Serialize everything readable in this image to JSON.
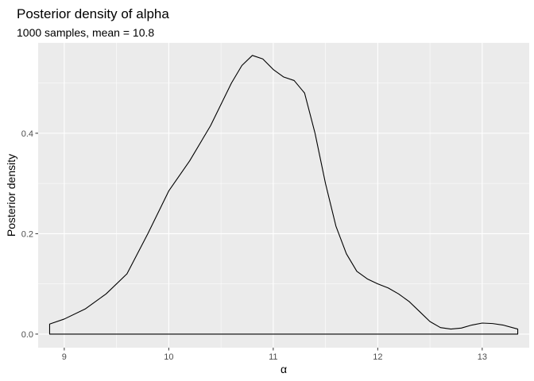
{
  "chart_data": {
    "type": "area",
    "title": "Posterior density of alpha",
    "subtitle": "1000 samples, mean = 10.8",
    "xlabel": "α",
    "ylabel": "Posterior density",
    "xlim": [
      8.75,
      13.45
    ],
    "ylim": [
      -0.027,
      0.58
    ],
    "x_ticks": [
      9,
      10,
      11,
      12,
      13
    ],
    "x_tick_labels": [
      "9",
      "10",
      "11",
      "12",
      "13"
    ],
    "y_ticks": [
      0.0,
      0.2,
      0.4
    ],
    "y_tick_labels": [
      "0.0",
      "0.2",
      "0.4"
    ],
    "grid": true,
    "colors": {
      "panel": "#ebebeb",
      "grid": "#ffffff",
      "line": "#000000",
      "fill": "none"
    },
    "series": [
      {
        "x": [
          8.86,
          9.0,
          9.2,
          9.4,
          9.6,
          9.8,
          10.0,
          10.2,
          10.4,
          10.6,
          10.7,
          10.8,
          10.9,
          11.0,
          11.1,
          11.2,
          11.3,
          11.4,
          11.5,
          11.6,
          11.7,
          11.8,
          11.9,
          12.0,
          12.1,
          12.2,
          12.3,
          12.4,
          12.5,
          12.6,
          12.7,
          12.8,
          12.9,
          13.0,
          13.1,
          13.2,
          13.34
        ],
        "y": [
          0.02,
          0.03,
          0.05,
          0.08,
          0.12,
          0.2,
          0.285,
          0.345,
          0.415,
          0.5,
          0.535,
          0.555,
          0.548,
          0.527,
          0.512,
          0.505,
          0.48,
          0.4,
          0.3,
          0.215,
          0.16,
          0.125,
          0.11,
          0.1,
          0.092,
          0.08,
          0.065,
          0.045,
          0.025,
          0.013,
          0.01,
          0.012,
          0.018,
          0.022,
          0.021,
          0.018,
          0.01
        ]
      }
    ]
  }
}
